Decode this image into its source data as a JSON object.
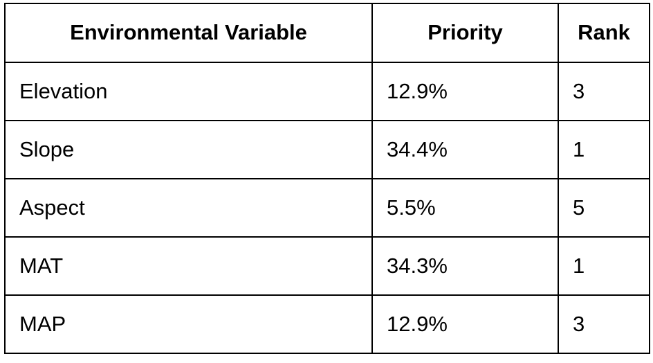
{
  "table": {
    "headers": [
      "Environmental Variable",
      "Priority",
      "Rank"
    ],
    "rows": [
      {
        "variable": "Elevation",
        "priority": "12.9%",
        "rank": "3"
      },
      {
        "variable": "Slope",
        "priority": "34.4%",
        "rank": "1"
      },
      {
        "variable": "Aspect",
        "priority": "5.5%",
        "rank": "5"
      },
      {
        "variable": "MAT",
        "priority": "34.3%",
        "rank": "1"
      },
      {
        "variable": "MAP",
        "priority": "12.9%",
        "rank": "3"
      }
    ]
  },
  "chart_data": {
    "type": "table",
    "columns": [
      "Environmental Variable",
      "Priority",
      "Rank"
    ],
    "rows": [
      [
        "Elevation",
        "12.9%",
        3
      ],
      [
        "Slope",
        "34.4%",
        1
      ],
      [
        "Aspect",
        "5.5%",
        5
      ],
      [
        "MAT",
        "34.3%",
        1
      ],
      [
        "MAP",
        "12.9%",
        3
      ]
    ]
  }
}
